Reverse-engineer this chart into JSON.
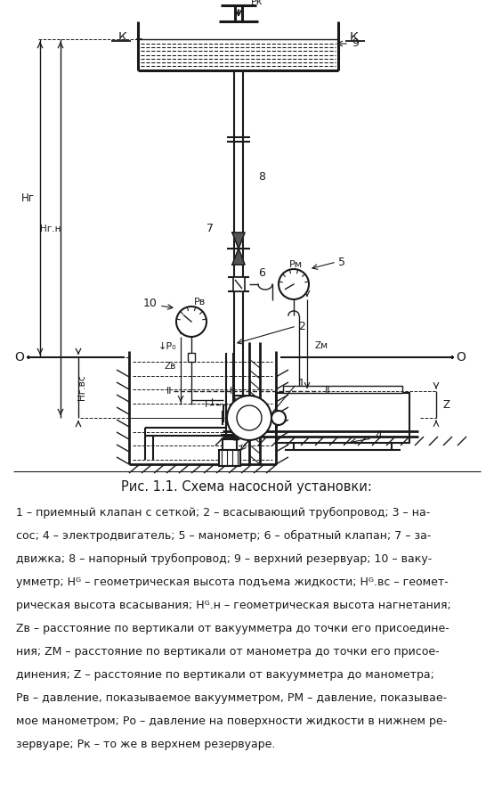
{
  "title": "Рис. 1.1. Схема насосной установки:",
  "caption_lines": [
    "1 – приемный клапан с сеткой; 2 – всасывающий трубопровод; 3 – на-",
    "сос; 4 – электродвигатель; 5 – манометр; 6 – обратный клапан; 7 – за-",
    "движка; 8 – напорный трубопровод; 9 – верхний резервуар; 10 – ваку-",
    "умметр; Hᴳ – геометрическая высота подъема жидкости; Hᴳ.вс – геомет-",
    "рическая высота всасывания; Hᴳ.н – геометрическая высота нагнетания;",
    "Zв – расстояние по вертикали от вакуумметра до точки его присоедине-",
    "ния; ZМ – расстояние по вертикали от манометра до точки его присое-",
    "динения; Z – расстояние по вертикали от вакуумметра до манометра;",
    "Pв – давление, показываемое вакуумметром, PМ – давление, показывае-",
    "мое манометром; Pо – давление на поверхности жидкости в нижнем ре-",
    "зервуаре; Pк – то же в верхнем резервуаре."
  ],
  "lc": "#1a1a1a"
}
